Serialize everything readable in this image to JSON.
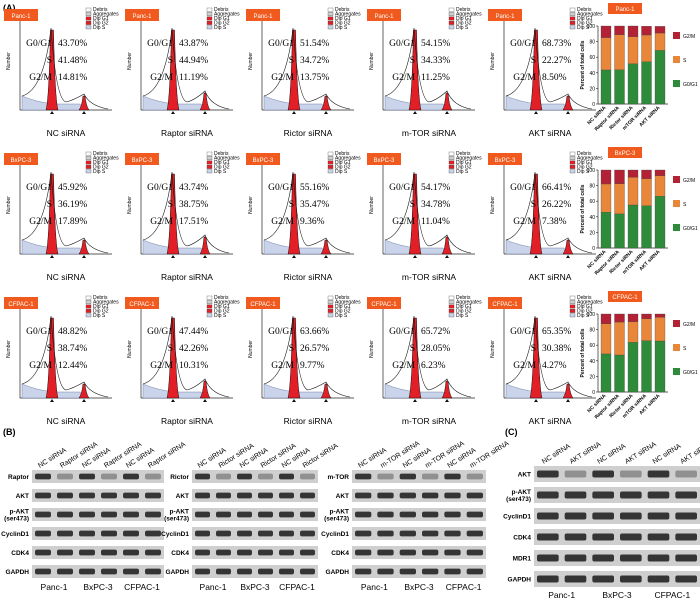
{
  "panel_a": {
    "label": "(A)",
    "conditions": [
      "NC siRNA",
      "Raptor siRNA",
      "Rictor siRNA",
      "m-TOR siRNA",
      "AKT siRNA"
    ],
    "rows": [
      {
        "cell_line": "Panc-1",
        "g0g1": [
          "43.70%",
          "43.87%",
          "51.54%",
          "54.15%",
          "68.73%"
        ],
        "s": [
          "41.48%",
          "44.94%",
          "34.72%",
          "34.33%",
          "22.27%"
        ],
        "g2m": [
          "14.81%",
          "11.19%",
          "13.75%",
          "11.25%",
          "8.50%"
        ]
      },
      {
        "cell_line": "BxPC-3",
        "g0g1": [
          "45.92%",
          "43.74%",
          "55.16%",
          "54.17%",
          "66.41%"
        ],
        "s": [
          "36.19%",
          "38.75%",
          "35.47%",
          "34.78%",
          "26.22%"
        ],
        "g2m": [
          "17.89%",
          "17.51%",
          "9.36%",
          "11.04%",
          "7.38%"
        ]
      },
      {
        "cell_line": "CFPAC-1",
        "g0g1": [
          "48.82%",
          "47.44%",
          "63.66%",
          "65.72%",
          "65.35%"
        ],
        "s": [
          "38.74%",
          "42.26%",
          "26.57%",
          "28.05%",
          "30.38%"
        ],
        "g2m": [
          "12.44%",
          "10.31%",
          "9.77%",
          "6.23%",
          "4.27%"
        ]
      }
    ],
    "phase_labels": {
      "g0g1": "G0/G1",
      "s": "S",
      "g2m": "G2/M"
    },
    "hist_legend": [
      "Debris",
      "Aggregates",
      "Dip G1",
      "Dip G2",
      "Dip S"
    ],
    "y_axis_label": "Number",
    "bar_ylabel": "Percent of total cells",
    "bar_yticks": [
      "0",
      "20",
      "40",
      "60",
      "80",
      "100"
    ],
    "colors": {
      "g0g1": "#2e8b3a",
      "s": "#e8873a",
      "g2m": "#b22234",
      "badge": "#f05a1e",
      "hist": "#e21f26"
    }
  },
  "chart_data": [
    {
      "type": "bar",
      "stacked": true,
      "title": "Panc-1",
      "categories": [
        "NC siRNA",
        "Raptor siRNA",
        "Rictor siRNA",
        "mTOR siRNA",
        "AKT siRNA"
      ],
      "series": [
        {
          "name": "G0/G1",
          "values": [
            43.7,
            43.87,
            51.54,
            54.15,
            68.73
          ]
        },
        {
          "name": "S",
          "values": [
            41.48,
            44.94,
            34.72,
            34.33,
            22.27
          ]
        },
        {
          "name": "G2/M",
          "values": [
            14.81,
            11.19,
            13.75,
            11.25,
            8.5
          ]
        }
      ],
      "ylabel": "Percent of total cells",
      "ylim": [
        0,
        100
      ]
    },
    {
      "type": "bar",
      "stacked": true,
      "title": "BxPC-3",
      "categories": [
        "NC siRNA",
        "Raptor siRNA",
        "Rictor siRNA",
        "mTOR siRNA",
        "AKT siRNA"
      ],
      "series": [
        {
          "name": "G0/G1",
          "values": [
            45.92,
            43.74,
            55.16,
            54.17,
            66.41
          ]
        },
        {
          "name": "S",
          "values": [
            36.19,
            38.75,
            35.47,
            34.78,
            26.22
          ]
        },
        {
          "name": "G2/M",
          "values": [
            17.89,
            17.51,
            9.36,
            11.04,
            7.38
          ]
        }
      ],
      "ylabel": "Percent of total cells",
      "ylim": [
        0,
        100
      ]
    },
    {
      "type": "bar",
      "stacked": true,
      "title": "CFPAC-1",
      "categories": [
        "NC siRNA",
        "Raptor siRNA",
        "Rictor siRNA",
        "mTOR siRNA",
        "AKT siRNA"
      ],
      "series": [
        {
          "name": "G0/G1",
          "values": [
            48.82,
            47.44,
            63.66,
            65.72,
            65.35
          ]
        },
        {
          "name": "S",
          "values": [
            38.74,
            42.26,
            26.57,
            28.05,
            30.38
          ]
        },
        {
          "name": "G2/M",
          "values": [
            12.44,
            10.31,
            9.77,
            6.23,
            4.27
          ]
        }
      ],
      "ylabel": "Percent of total cells",
      "ylim": [
        0,
        100
      ]
    }
  ],
  "panel_b": {
    "label": "(B)",
    "blots": [
      {
        "lanes": [
          "NC siRNA",
          "Raptor siRNA",
          "NC siRNA",
          "Raptor siRNA",
          "NC siRNA",
          "Raptor siRNA"
        ],
        "proteins": [
          "Raptor",
          "AKT",
          "p-AKT\n(ser473)",
          "CyclinD1",
          "CDK4",
          "GAPDH"
        ]
      },
      {
        "lanes": [
          "NC siRNA",
          "Rictor siRNA",
          "NC siRNA",
          "Rictor siRNA",
          "NC siRNA",
          "Rictor siRNA"
        ],
        "proteins": [
          "Rictor",
          "AKT",
          "p-AKT\n(ser473)",
          "CyclinD1",
          "CDK4",
          "GAPDH"
        ]
      },
      {
        "lanes": [
          "NC siRNA",
          "m-TOR siRNA",
          "NC siRNA",
          "m-TOR siRNA",
          "NC siRNA",
          "m-TOR siRNA"
        ],
        "proteins": [
          "m-TOR",
          "AKT",
          "p-AKT\n(ser473)",
          "CyclinD1",
          "CDK4",
          "GAPDH"
        ]
      }
    ],
    "cell_lines": [
      "Panc-1",
      "BxPC-3",
      "CFPAC-1"
    ]
  },
  "panel_c": {
    "label": "(C)",
    "lanes": [
      "NC siRNA",
      "AKT siRNA",
      "NC siRNA",
      "AKT siRNA",
      "NC siRNA",
      "AKT siRNA"
    ],
    "proteins": [
      "AKT",
      "p-AKT\n(ser473)",
      "CyclinD1",
      "CDK4",
      "MDR1",
      "GAPDH"
    ],
    "cell_lines": [
      "Panc-1",
      "BxPC-3",
      "CFPAC-1"
    ]
  }
}
